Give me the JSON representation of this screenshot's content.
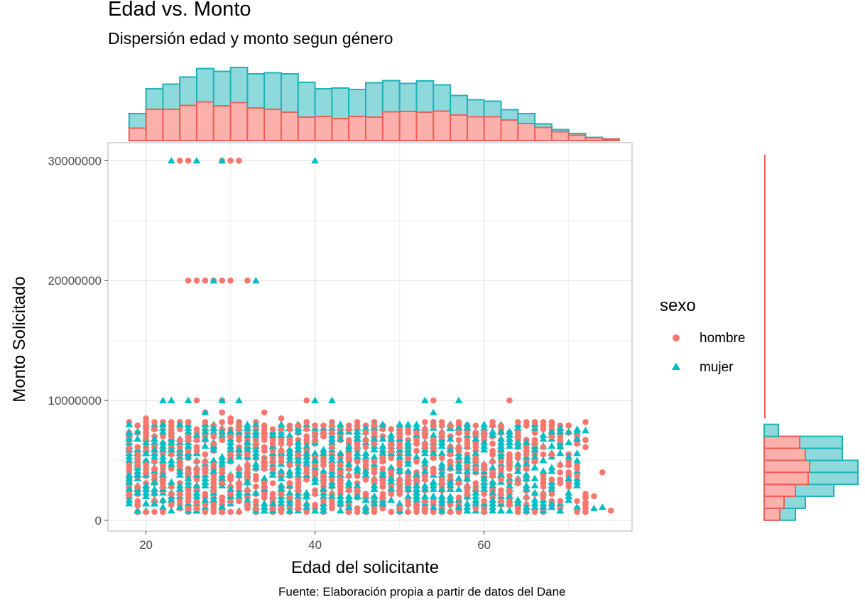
{
  "chart_data": {
    "type": "scatter",
    "title": "Edad vs. Monto",
    "subtitle": "Dispersión edad y monto segun género",
    "caption": "Fuente: Elaboración propia a partir de datos del Dane",
    "xlabel": "Edad del solicitante",
    "ylabel": "Monto Solicitado",
    "xlim": [
      15.5,
      77.5
    ],
    "ylim": [
      -900000,
      31500000
    ],
    "x_ticks": [
      20,
      40,
      60
    ],
    "y_ticks": [
      0,
      10000000,
      20000000,
      30000000
    ],
    "x_tick_labels": [
      "20",
      "40",
      "60"
    ],
    "y_tick_labels": [
      "0",
      "10000000",
      "20000000",
      "30000000"
    ],
    "grid": true,
    "legend": {
      "title": "sexo",
      "position": "right",
      "entries": [
        {
          "name": "hombre",
          "shape": "circle",
          "color": "#F8766D"
        },
        {
          "name": "mujer",
          "shape": "triangle",
          "color": "#00BFC4"
        }
      ]
    },
    "series": [
      {
        "name": "hombre",
        "color": "#F8766D",
        "fill": "#F8766D",
        "marker": "circle",
        "outliers": [
          [
            24,
            30000000
          ],
          [
            25,
            30000000
          ],
          [
            29,
            30000000
          ],
          [
            30,
            30000000
          ],
          [
            31,
            30000000
          ],
          [
            25,
            20000000
          ],
          [
            26,
            20000000
          ],
          [
            27,
            20000000
          ],
          [
            28,
            20000000
          ],
          [
            29,
            20000000
          ],
          [
            30,
            20000000
          ],
          [
            32,
            20000000
          ],
          [
            26,
            10000000
          ],
          [
            29,
            10000000
          ],
          [
            39,
            10000000
          ],
          [
            54,
            10000000
          ],
          [
            63,
            10000000
          ],
          [
            27,
            9000000
          ],
          [
            29,
            9000000
          ],
          [
            34,
            9000000
          ],
          [
            20,
            8500000
          ],
          [
            30,
            8500000
          ],
          [
            36,
            8500000
          ],
          [
            74,
            4000000
          ],
          [
            73,
            2000000
          ],
          [
            72,
            1500000
          ],
          [
            75,
            800000
          ],
          [
            19,
            1200000
          ],
          [
            18,
            6000000
          ]
        ],
        "band": {
          "age_from": 18,
          "age_to": 72,
          "monto_from": 700000,
          "monto_to": 8400000
        }
      },
      {
        "name": "mujer",
        "color": "#00BFC4",
        "fill": "#00BFC4",
        "marker": "triangle",
        "outliers": [
          [
            23,
            30000000
          ],
          [
            26,
            30000000
          ],
          [
            29,
            30000000
          ],
          [
            40,
            30000000
          ],
          [
            28,
            20000000
          ],
          [
            33,
            20000000
          ],
          [
            22,
            10000000
          ],
          [
            23,
            10000000
          ],
          [
            25,
            10000000
          ],
          [
            29,
            10000000
          ],
          [
            31,
            10000000
          ],
          [
            40,
            10000000
          ],
          [
            42,
            10000000
          ],
          [
            53,
            10000000
          ],
          [
            57,
            10000000
          ],
          [
            27,
            9000000
          ],
          [
            54,
            9000000
          ],
          [
            18,
            7300000
          ],
          [
            71,
            7600000
          ],
          [
            72,
            7500000
          ],
          [
            73,
            1000000
          ],
          [
            74,
            1100000
          ],
          [
            71,
            5000000
          ],
          [
            70,
            3500000
          ],
          [
            18,
            3200000
          ]
        ],
        "band": {
          "age_from": 18,
          "age_to": 71,
          "monto_from": 800000,
          "monto_to": 8200000
        }
      }
    ],
    "marginal_x": {
      "type": "histogram",
      "stacked": true,
      "bin_start": 18,
      "bin_width": 2,
      "bins_hombre": [
        3.5,
        8.8,
        8.8,
        9.9,
        10.9,
        9.8,
        10.7,
        9.2,
        8.8,
        8.0,
        6.6,
        6.8,
        6.2,
        6.8,
        6.6,
        8.1,
        8.2,
        8.0,
        8.3,
        7.2,
        6.7,
        6.7,
        5.8,
        4.8,
        3.7,
        2.5,
        1.5,
        0.8,
        0.4
      ],
      "bins_total": [
        7.6,
        14.6,
        15.9,
        17.9,
        20.3,
        19.5,
        20.6,
        18.8,
        19.1,
        18.8,
        16.4,
        14.6,
        14.8,
        14.4,
        16.3,
        16.9,
        16.1,
        16.8,
        15.7,
        12.7,
        11.5,
        11.1,
        8.7,
        7.6,
        4.7,
        3.1,
        2.0,
        0.9,
        0.5
      ],
      "counts_unit": "relative"
    },
    "marginal_y": {
      "type": "histogram",
      "stacked": true,
      "bin_start": 0,
      "bin_width": 1000000,
      "bins_hombre": [
        22,
        28,
        44,
        62,
        64,
        58,
        50,
        0,
        0
      ],
      "bins_total": [
        44,
        58,
        98,
        132,
        132,
        110,
        110,
        20,
        0
      ],
      "sparse_tail": [
        [
          9000000,
          2
        ],
        [
          10000000,
          3
        ],
        [
          20000000,
          2
        ],
        [
          30000000,
          2
        ]
      ]
    }
  }
}
